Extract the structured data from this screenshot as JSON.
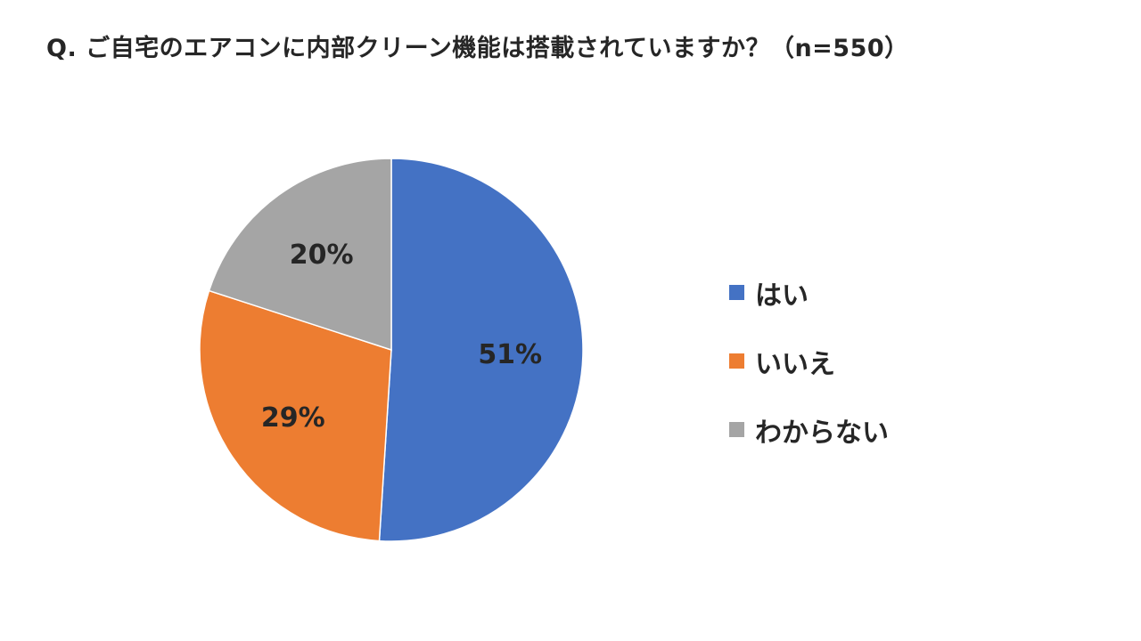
{
  "chart_data": {
    "type": "pie",
    "title": "Q. ご自宅のエアコンに内部クリーン機能は搭載されていますか？（n=550）",
    "categories": [
      "はい",
      "いいえ",
      "わからない"
    ],
    "values": [
      51,
      29,
      20
    ],
    "labels": [
      "51%",
      "29%",
      "20%"
    ],
    "colors": [
      "#4472C4",
      "#ED7D31",
      "#A5A5A5"
    ],
    "legend_position": "right"
  }
}
